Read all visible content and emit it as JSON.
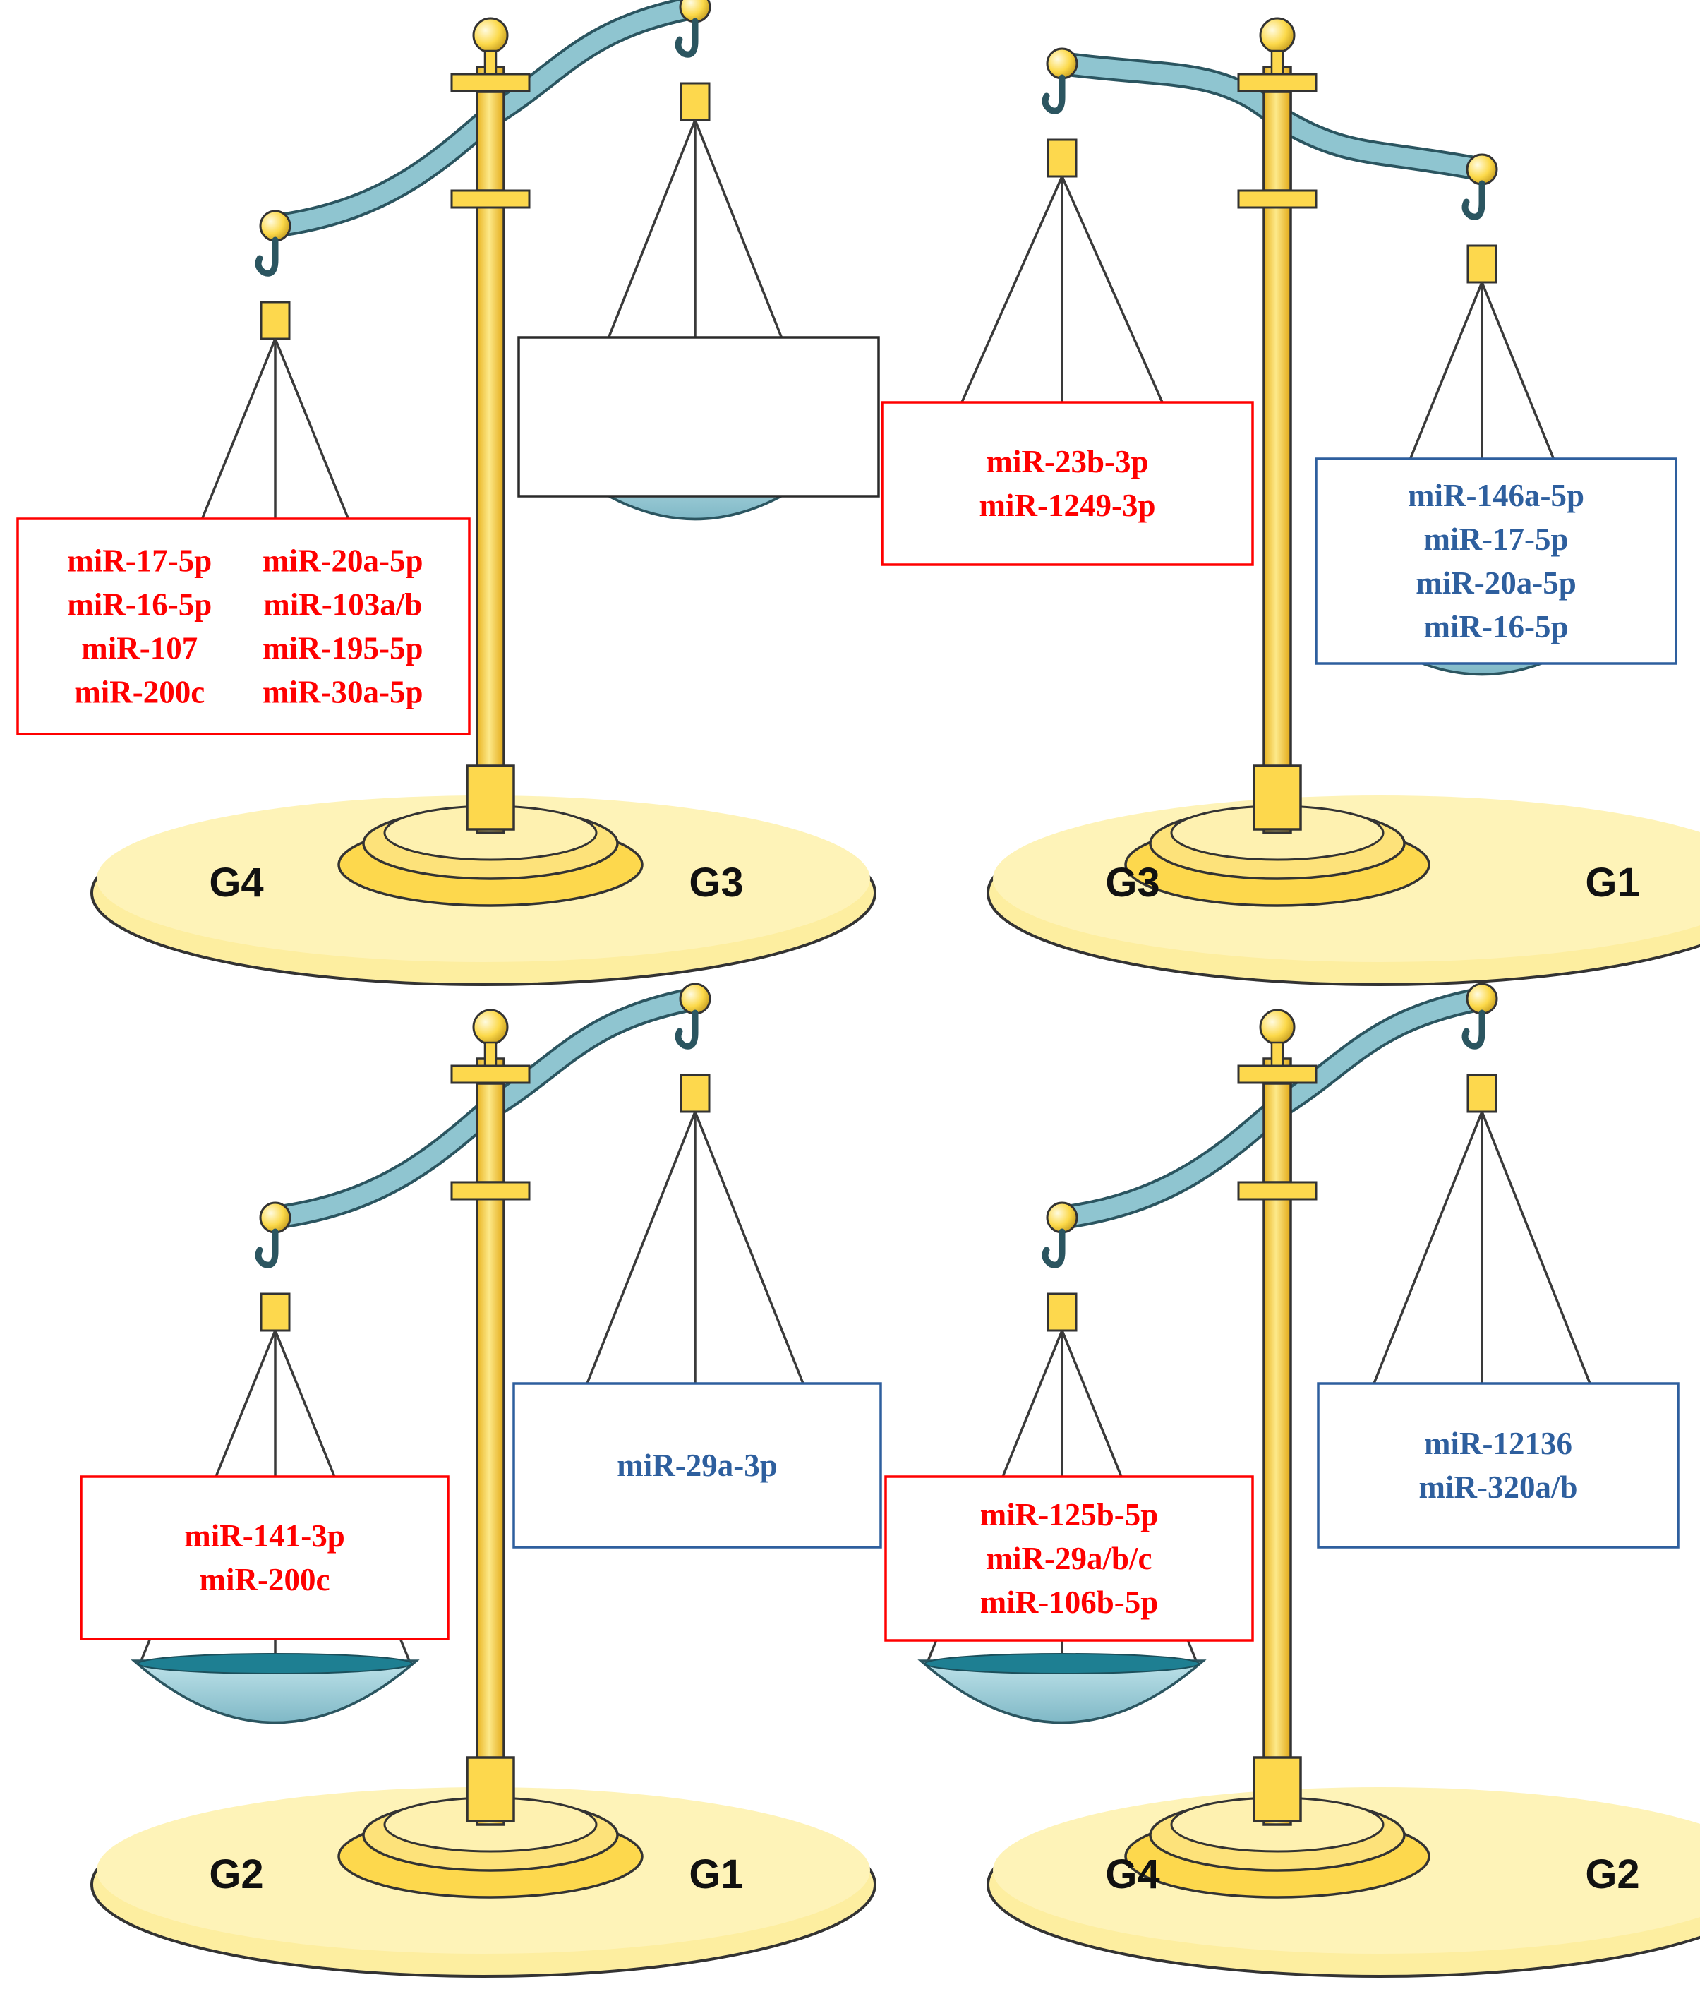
{
  "colors": {
    "up_red": "#ff0000",
    "down_blue": "#2e5f9e",
    "gold": "#fdd84d",
    "gold_dark": "#c9a020",
    "base_cream": "#fdeea0",
    "beam_blue": "#8fc5d0",
    "pan_blue": "#a8d5dd",
    "pan_dark": "#1e7f92"
  },
  "scales": [
    {
      "id": "g4-vs-g3",
      "left_label": "G4",
      "right_label": "G3",
      "heavier_side": "left",
      "boxes": [
        {
          "side": "left",
          "color": "red",
          "columns": [
            [
              "miR-17-5p",
              "miR-16-5p",
              "miR-107",
              "miR-200c"
            ],
            [
              "miR-20a-5p",
              "miR-103a/b",
              "miR-195-5p",
              "miR-30a-5p"
            ]
          ]
        },
        {
          "side": "right",
          "color": "none",
          "columns": [
            []
          ]
        }
      ]
    },
    {
      "id": "g3-vs-g1",
      "left_label": "G3",
      "right_label": "G1",
      "heavier_side": "right",
      "boxes": [
        {
          "side": "left",
          "color": "red",
          "columns": [
            [
              "miR-23b-3p",
              "miR-1249-3p"
            ]
          ]
        },
        {
          "side": "right",
          "color": "blue",
          "columns": [
            [
              "miR-146a-5p",
              "miR-17-5p",
              "miR-20a-5p",
              "miR-16-5p"
            ]
          ]
        }
      ]
    },
    {
      "id": "g2-vs-g1",
      "left_label": "G2",
      "right_label": "G1",
      "heavier_side": "left",
      "boxes": [
        {
          "side": "left",
          "color": "red",
          "columns": [
            [
              "miR-141-3p",
              "miR-200c"
            ]
          ]
        },
        {
          "side": "right",
          "color": "blue",
          "columns": [
            [
              "miR-29a-3p"
            ]
          ]
        }
      ]
    },
    {
      "id": "g4-vs-g2",
      "left_label": "G4",
      "right_label": "G2",
      "heavier_side": "left",
      "boxes": [
        {
          "side": "left",
          "color": "red",
          "columns": [
            [
              "miR-125b-5p",
              "miR-29a/b/c",
              "miR-106b-5p"
            ]
          ]
        },
        {
          "side": "right",
          "color": "blue",
          "columns": [
            [
              "miR-12136",
              "miR-320a/b"
            ]
          ]
        }
      ]
    }
  ]
}
